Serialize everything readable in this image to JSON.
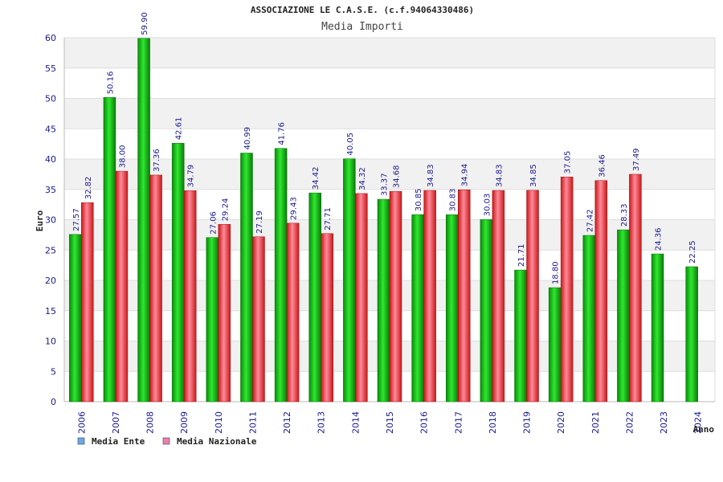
{
  "chart_data": {
    "type": "bar",
    "title": "ASSOCIAZIONE LE C.A.S.E. (c.f.94064330486)",
    "subtitle": "Media Importi",
    "xlabel": "Anno",
    "ylabel": "Euro",
    "ylim": [
      0,
      60
    ],
    "yticks": [
      "0",
      "5",
      "10",
      "15",
      "20",
      "25",
      "30",
      "35",
      "40",
      "45",
      "50",
      "55",
      "60"
    ],
    "grid": true,
    "legend_position": "bottom-left",
    "categories": [
      "2006",
      "2007",
      "2008",
      "2009",
      "2010",
      "2011",
      "2012",
      "2013",
      "2014",
      "2015",
      "2016",
      "2017",
      "2018",
      "2019",
      "2020",
      "2021",
      "2022",
      "2023",
      "2024"
    ],
    "series": [
      {
        "name": "Media Ente",
        "color": "#10b010",
        "legend_color": "#6aa8e8",
        "values": [
          27.57,
          50.16,
          59.9,
          42.61,
          27.06,
          40.99,
          41.76,
          34.42,
          40.05,
          33.37,
          30.85,
          30.83,
          30.03,
          21.71,
          18.8,
          27.42,
          28.33,
          24.36,
          22.25
        ],
        "labels": [
          "27.57",
          "50.16",
          "59.90",
          "42.61",
          "27.06",
          "40.99",
          "41.76",
          "34.42",
          "40.05",
          "33.37",
          "30.85",
          "30.83",
          "30.03",
          "21.71",
          "18.80",
          "27.42",
          "28.33",
          "24.36",
          "22.25"
        ]
      },
      {
        "name": "Media Nazionale",
        "color": "#e83030",
        "legend_color": "#e880b0",
        "values": [
          32.82,
          38.0,
          37.36,
          34.79,
          29.24,
          27.19,
          29.43,
          27.71,
          34.32,
          34.68,
          34.83,
          34.94,
          34.83,
          34.85,
          37.05,
          36.46,
          37.49,
          null,
          null
        ],
        "labels": [
          "32.82",
          "38.00",
          "37.36",
          "34.79",
          "29.24",
          "27.19",
          "29.43",
          "27.71",
          "34.32",
          "34.68",
          "34.83",
          "34.94",
          "34.83",
          "34.85",
          "37.05",
          "36.46",
          "37.49",
          null,
          null
        ]
      }
    ]
  }
}
